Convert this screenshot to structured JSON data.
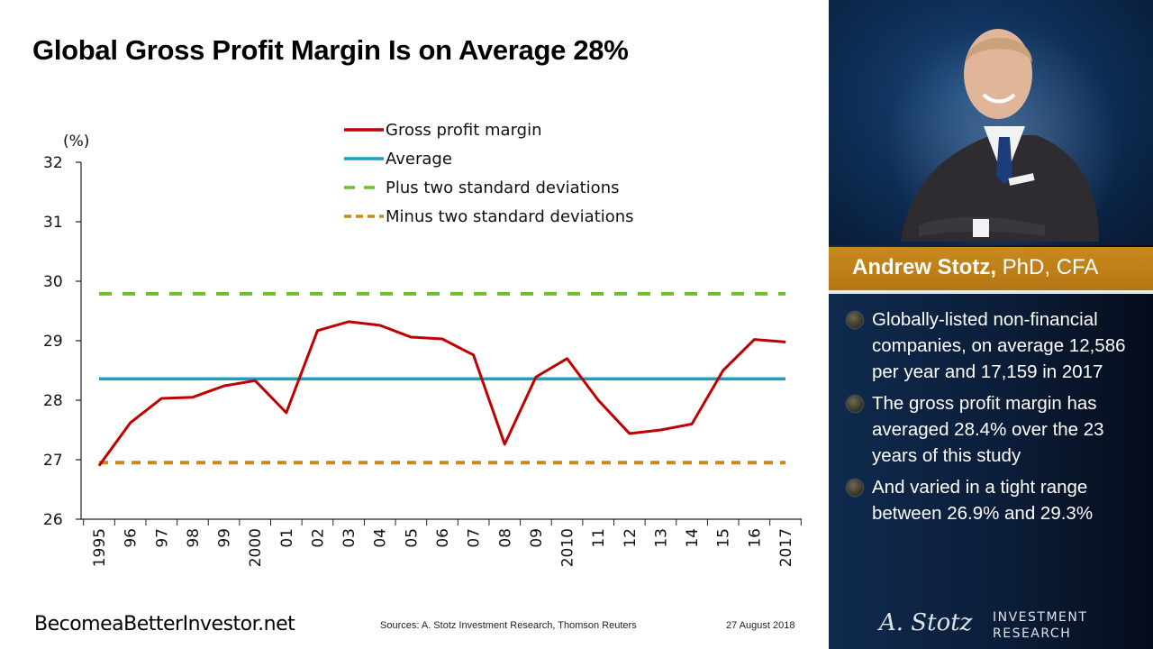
{
  "title": "Global Gross Profit Margin Is on Average 28%",
  "footer": {
    "site": "BecomeaBetterInvestor.net",
    "sources": "Sources: A. Stotz Investment Research, Thomson Reuters",
    "date": "27 August 2018"
  },
  "sidebar": {
    "name": "Andrew Stotz,",
    "credentials": " PhD, CFA",
    "bullets": [
      "Globally-listed non-financial companies, on average 12,586 per year and 17,159 in 2017",
      "The gross profit margin has averaged 28.4% over the 23 years of this study",
      "And varied in a tight range between 26.9% and 29.3%"
    ],
    "logo_signature": "A. Stotz",
    "logo_line1": "INVESTMENT",
    "logo_line2": "RESEARCH"
  },
  "chart_data": {
    "type": "line",
    "title": "Global Gross Profit Margin Is on Average 28%",
    "ylabel": "(%)",
    "xlabel": "",
    "ylim": [
      26,
      32
    ],
    "yticks": [
      "26",
      "27",
      "28",
      "29",
      "30",
      "31",
      "32"
    ],
    "categories": [
      "1995",
      "96",
      "97",
      "98",
      "99",
      "2000",
      "01",
      "02",
      "03",
      "04",
      "05",
      "06",
      "07",
      "08",
      "09",
      "2010",
      "11",
      "12",
      "13",
      "14",
      "15",
      "16",
      "2017"
    ],
    "legend_position": "top",
    "grid": false,
    "series": [
      {
        "name": "Gross profit margin",
        "color": "#c00000",
        "style": "solid",
        "values": [
          26.9,
          27.62,
          28.03,
          28.05,
          28.24,
          28.33,
          27.79,
          29.17,
          29.32,
          29.26,
          29.06,
          29.03,
          28.76,
          27.26,
          28.39,
          28.7,
          28.0,
          27.44,
          27.5,
          27.6,
          28.5,
          29.02,
          28.98
        ]
      },
      {
        "name": "Average",
        "color": "#1aa0c8",
        "style": "solid",
        "constant": 28.36
      },
      {
        "name": "Plus two standard deviations",
        "color": "#6cbf2a",
        "style": "dashed",
        "constant": 29.79
      },
      {
        "name": "Minus two standard deviations",
        "color": "#cc8a14",
        "style": "dashed",
        "constant": 26.95
      }
    ]
  }
}
